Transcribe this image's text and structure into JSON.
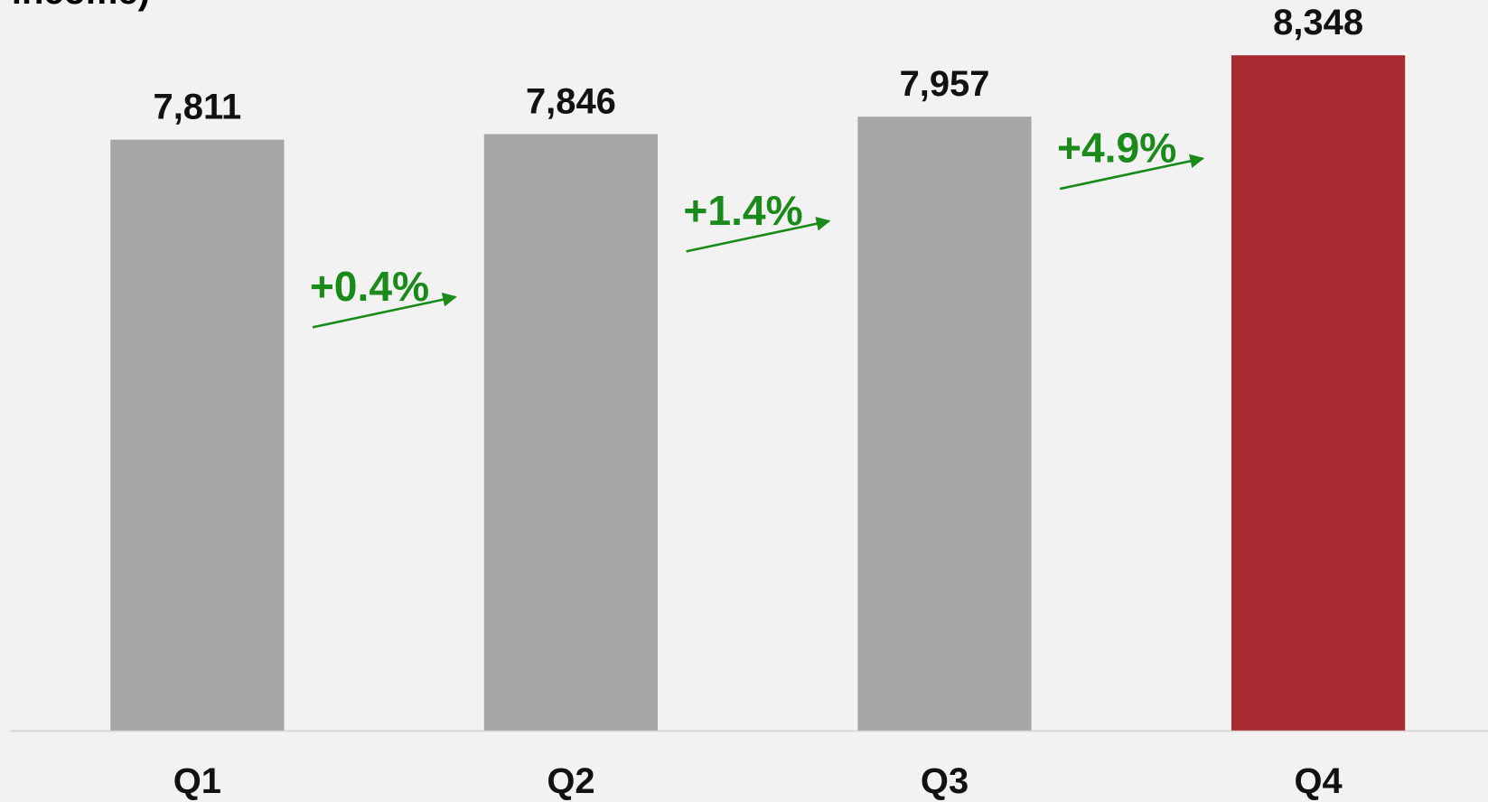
{
  "chart_data": {
    "type": "bar",
    "title": "al income)",
    "categories": [
      "Q1",
      "Q2",
      "Q3",
      "Q4"
    ],
    "values": [
      7811,
      7846,
      7957,
      8348
    ],
    "value_labels": [
      "7,811",
      "7,846",
      "7,957",
      "8,348"
    ],
    "colors": [
      "#a6a6a6",
      "#a6a6a6",
      "#a6a6a6",
      "#a8292f"
    ],
    "ylim": [
      4050,
      8700
    ],
    "annotations": [
      "+0.4%",
      "+1.4%",
      "+4.9%"
    ],
    "annotation_color": "#1a8a1a"
  }
}
